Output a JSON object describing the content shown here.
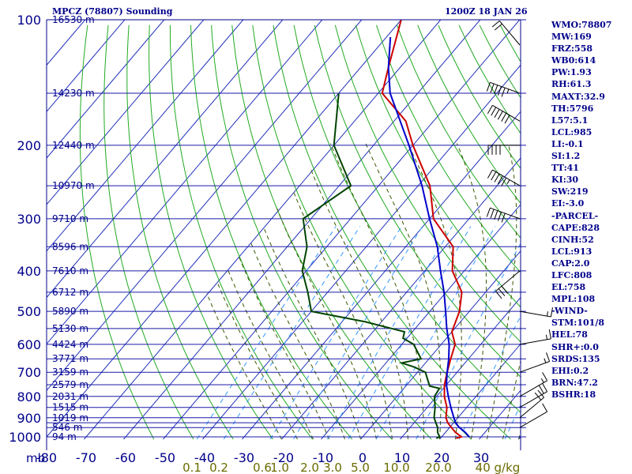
{
  "header": {
    "title": "MPCZ (78807) Sounding",
    "time": "1200Z 18 JAN 26"
  },
  "colors": {
    "frame": "#00008b",
    "isobar": "#1a1aa8",
    "isotherm": "#2233bb",
    "dry_adiabat": "#22aa22",
    "moist_adiabat": "#3a5a00",
    "mixing_ratio": "#3399ff",
    "temperature": "#cc0000",
    "dewpoint": "#004400",
    "parcel": "#0000cc",
    "label": "#00008b",
    "mixing_label": "#6b6b00"
  },
  "indices": [
    "WMO:78807",
    "MW:169",
    "FRZ:558",
    "WB0:614",
    "PW:1.93",
    "RH:61.3",
    "MAXT:32.9",
    "TH:5796",
    "L57:5.1",
    "LCL:985",
    "LI:-0.1",
    "SI:1.2",
    "TT:41",
    "KI:30",
    "SW:219",
    "EI:-3.0",
    "-PARCEL-",
    "CAPE:828",
    "CINH:52",
    "LCL:913",
    "CAP:2.0",
    "LFC:808",
    "EL:758",
    "MPL:108",
    "-WIND-",
    "STM:101/8",
    "HEL:78",
    "SHR+:0.0",
    "SRDS:135",
    "EHI:0.2",
    "BRN:47.2",
    "BSHR:18"
  ],
  "chart_data": {
    "type": "skew-t",
    "title": "MPCZ (78807) Sounding",
    "valid_time": "1200Z 18 JAN 26",
    "y_unit_label": "mb",
    "temp_axis": {
      "unit": "°C",
      "ticks": [
        -80,
        -70,
        -60,
        -50,
        -40,
        -30,
        -20,
        -10,
        0,
        10,
        20,
        30
      ],
      "range": [
        -80,
        40
      ]
    },
    "pressure_axis": {
      "unit": "mb",
      "ticks": [
        100,
        200,
        300,
        400,
        500,
        600,
        700,
        800,
        900,
        1000
      ],
      "range": [
        100,
        1013
      ],
      "scale": "log"
    },
    "isobar_levels": [
      100,
      150,
      200,
      250,
      300,
      350,
      400,
      450,
      500,
      550,
      600,
      650,
      700,
      750,
      800,
      850,
      900,
      925,
      950,
      1000
    ],
    "height_labels": [
      {
        "p": 100,
        "label": "16530 m"
      },
      {
        "p": 150,
        "label": "14230 m"
      },
      {
        "p": 200,
        "label": "12440 m"
      },
      {
        "p": 250,
        "label": "10970 m"
      },
      {
        "p": 300,
        "label": "9710 m"
      },
      {
        "p": 350,
        "label": "8596 m"
      },
      {
        "p": 400,
        "label": "7610 m"
      },
      {
        "p": 450,
        "label": "6712 m"
      },
      {
        "p": 500,
        "label": "5890 m"
      },
      {
        "p": 550,
        "label": "5130 m"
      },
      {
        "p": 600,
        "label": "4424 m"
      },
      {
        "p": 650,
        "label": "3771 m"
      },
      {
        "p": 700,
        "label": "3159 m"
      },
      {
        "p": 750,
        "label": "2579 m"
      },
      {
        "p": 800,
        "label": "2031 m"
      },
      {
        "p": 850,
        "label": "1515 m"
      },
      {
        "p": 900,
        "label": "1019 m"
      },
      {
        "p": 950,
        "label": "546 m"
      },
      {
        "p": 1000,
        "label": "94 m"
      }
    ],
    "mixing_ratio_labels": [
      "0.1",
      "0.2",
      "0.6",
      "1.0",
      "2.0",
      "3.0",
      "5.0",
      "10.0",
      "20.0",
      "40 g/kg"
    ],
    "series": [
      {
        "name": "temperature",
        "points": [
          [
            1008,
            24
          ],
          [
            1000,
            25
          ],
          [
            975,
            22.5
          ],
          [
            950,
            20.5
          ],
          [
            925,
            18.5
          ],
          [
            900,
            17
          ],
          [
            850,
            15
          ],
          [
            800,
            12
          ],
          [
            750,
            9.5
          ],
          [
            700,
            7.5
          ],
          [
            650,
            5.5
          ],
          [
            600,
            3.5
          ],
          [
            560,
            0
          ],
          [
            500,
            -2.5
          ],
          [
            450,
            -6
          ],
          [
            400,
            -13
          ],
          [
            350,
            -18
          ],
          [
            300,
            -29
          ],
          [
            250,
            -37
          ],
          [
            200,
            -50
          ],
          [
            175,
            -57
          ],
          [
            150,
            -69
          ],
          [
            130,
            -73
          ],
          [
            100,
            -80
          ]
        ]
      },
      {
        "name": "dewpoint",
        "points": [
          [
            1008,
            19
          ],
          [
            1000,
            19.5
          ],
          [
            975,
            18
          ],
          [
            950,
            17
          ],
          [
            925,
            15.5
          ],
          [
            900,
            14
          ],
          [
            850,
            12
          ],
          [
            800,
            9.5
          ],
          [
            765,
            9
          ],
          [
            755,
            6
          ],
          [
            700,
            2
          ],
          [
            680,
            -2
          ],
          [
            665,
            -6
          ],
          [
            650,
            -2
          ],
          [
            600,
            -7
          ],
          [
            580,
            -11
          ],
          [
            560,
            -12
          ],
          [
            530,
            -24
          ],
          [
            500,
            -40
          ],
          [
            450,
            -45
          ],
          [
            400,
            -51
          ],
          [
            350,
            -55
          ],
          [
            300,
            -62
          ],
          [
            250,
            -57
          ],
          [
            200,
            -70
          ],
          [
            150,
            -80
          ]
        ]
      },
      {
        "name": "parcel",
        "points": [
          [
            1000,
            27
          ],
          [
            975,
            25
          ],
          [
            950,
            22.5
          ],
          [
            925,
            20.5
          ],
          [
            900,
            19
          ],
          [
            850,
            16
          ],
          [
            800,
            13
          ],
          [
            750,
            10
          ],
          [
            700,
            7.5
          ],
          [
            650,
            5
          ],
          [
            600,
            2
          ],
          [
            550,
            -2
          ],
          [
            500,
            -6
          ],
          [
            450,
            -10.5
          ],
          [
            400,
            -16
          ],
          [
            350,
            -22
          ],
          [
            300,
            -30
          ],
          [
            250,
            -39
          ],
          [
            200,
            -51
          ],
          [
            150,
            -67
          ],
          [
            130,
            -73
          ],
          [
            110,
            -79
          ]
        ]
      }
    ],
    "wind_barbs": [
      {
        "p": 115,
        "dir": 320,
        "spd": 20
      },
      {
        "p": 150,
        "dir": 290,
        "spd": 55
      },
      {
        "p": 175,
        "dir": 300,
        "spd": 60
      },
      {
        "p": 200,
        "dir": 270,
        "spd": 40
      },
      {
        "p": 250,
        "dir": 300,
        "spd": 55
      },
      {
        "p": 300,
        "dir": 290,
        "spd": 50
      },
      {
        "p": 400,
        "dir": 230,
        "spd": 30
      },
      {
        "p": 500,
        "dir": 100,
        "spd": 15
      },
      {
        "p": 600,
        "dir": 80,
        "spd": 15
      },
      {
        "p": 700,
        "dir": 70,
        "spd": 15
      },
      {
        "p": 800,
        "dir": 60,
        "spd": 15
      },
      {
        "p": 850,
        "dir": 60,
        "spd": 20
      },
      {
        "p": 900,
        "dir": 50,
        "spd": 20
      },
      {
        "p": 950,
        "dir": 60,
        "spd": 10
      }
    ]
  }
}
